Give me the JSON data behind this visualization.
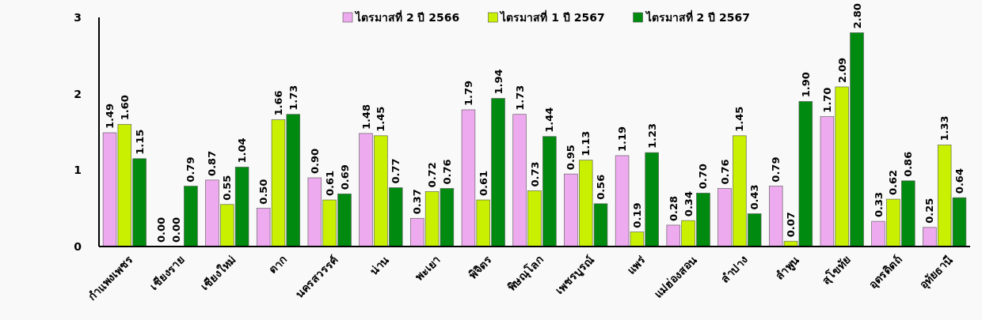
{
  "chart_data": {
    "type": "bar",
    "categories": [
      "กำแพงเพชร",
      "เชียงราย",
      "เชียงใหม่",
      "ตาก",
      "นครสวรรค์",
      "น่าน",
      "พะเยา",
      "พิจิตร",
      "พิษณุโลก",
      "เพชรบูรณ์",
      "แพร่",
      "แม่ฮ่องสอน",
      "ลำปาง",
      "ลำพูน",
      "สุโขทัย",
      "อุตรดิตถ์",
      "อุทัยธานี"
    ],
    "series": [
      {
        "name": "ไตรมาสที่ 2 ปี 2566",
        "color": "#eeaaee",
        "values": [
          1.49,
          0.0,
          0.87,
          0.5,
          0.9,
          1.48,
          0.37,
          1.79,
          1.73,
          0.95,
          1.19,
          0.28,
          0.76,
          0.79,
          1.7,
          0.33,
          0.25
        ],
        "value_labels": [
          "1.49",
          "0.00",
          "0.87",
          "0.50",
          "0.90",
          "1.48",
          "0.37",
          "1.79",
          "1.73",
          "0.95",
          "1.19",
          "0.28",
          "0.76",
          "0.79",
          "1.70",
          "0.33",
          "0.25"
        ]
      },
      {
        "name": "ไตรมาสที่ 1 ปี 2567",
        "color": "#c8f000",
        "values": [
          1.6,
          0.0,
          0.55,
          1.66,
          0.61,
          1.45,
          0.72,
          0.61,
          0.73,
          1.13,
          0.19,
          0.34,
          1.45,
          0.07,
          2.09,
          0.62,
          1.33
        ],
        "value_labels": [
          "1.60",
          "0.00",
          "0.55",
          "1.66",
          "0.61",
          "1.45",
          "0.72",
          "0.61",
          "0.73",
          "1.13",
          "0.19",
          "0.34",
          "1.45",
          "0.07",
          "2.09",
          "0.62",
          "1.33"
        ]
      },
      {
        "name": "ไตรมาสที่ 2 ปี 2567",
        "color": "#008a10",
        "values": [
          1.15,
          0.79,
          1.04,
          1.73,
          0.69,
          0.77,
          0.76,
          1.94,
          1.44,
          0.56,
          1.23,
          0.7,
          0.43,
          1.9,
          2.8,
          0.86,
          0.64
        ],
        "value_labels": [
          "1.15",
          "0.79",
          "1.04",
          "1.73",
          "0.69",
          "0.77",
          "0.76",
          "1.94",
          "1.44",
          "0.56",
          "1.23",
          "0.70",
          "0.43",
          "1.90",
          "2.80",
          "0.86",
          "0.64"
        ]
      }
    ],
    "ylim": [
      0,
      3
    ],
    "yticks": [
      0,
      1,
      2,
      3
    ],
    "grid": false,
    "legend": "top"
  }
}
